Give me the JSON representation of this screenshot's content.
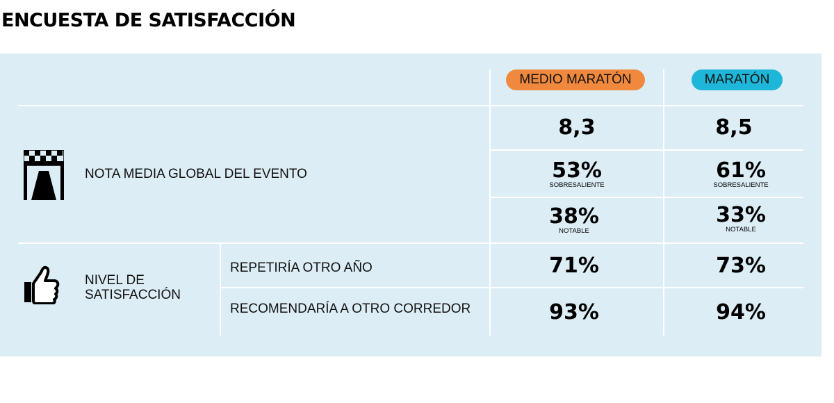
{
  "title": "ENCUESTA DE SATISFACCIÓN",
  "colors": {
    "panel_bg": "#dcedf5",
    "half_marathon": "#f0883e",
    "marathon": "#1fb7d9"
  },
  "chart_data": {
    "type": "table",
    "columns": [
      "MEDIO MARATÓN",
      "MARATÓN"
    ],
    "rows": [
      {
        "group": "NOTA MEDIA GLOBAL DEL EVENTO",
        "icon": "finish-line-icon",
        "label": "",
        "values": [
          "8,3",
          "8,5"
        ],
        "sublabel": ""
      },
      {
        "group": "NOTA MEDIA GLOBAL DEL EVENTO",
        "icon": "finish-line-icon",
        "label": "",
        "values": [
          "53%",
          "61%"
        ],
        "sublabel": "SOBRESALIENTE"
      },
      {
        "group": "NOTA MEDIA GLOBAL DEL EVENTO",
        "icon": "finish-line-icon",
        "label": "",
        "values": [
          "38%",
          "33%"
        ],
        "sublabel": "NOTABLE"
      },
      {
        "group": "NIVEL DE SATISFACCIÓN",
        "icon": "thumbs-up-icon",
        "label": "REPETIRÍA OTRO AÑO",
        "values": [
          "71%",
          "73%"
        ],
        "sublabel": ""
      },
      {
        "group": "NIVEL DE SATISFACCIÓN",
        "icon": "thumbs-up-icon",
        "label": "RECOMENDARÍA A OTRO CORREDOR",
        "values": [
          "93%",
          "94%"
        ],
        "sublabel": ""
      }
    ]
  },
  "groups": {
    "global": {
      "label": "NOTA MEDIA GLOBAL DEL EVENTO",
      "icon": "finish-line-icon"
    },
    "satisfaction": {
      "label_line1": "NIVEL DE",
      "label_line2": "SATISFACCIÓN",
      "icon": "thumbs-up-icon"
    }
  }
}
